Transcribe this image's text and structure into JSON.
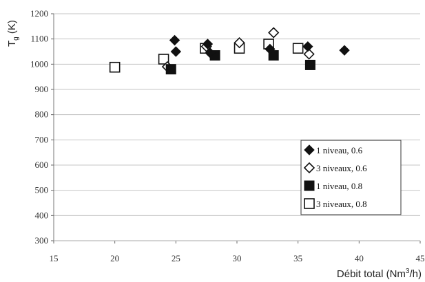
{
  "chart_data": {
    "type": "scatter",
    "title": "",
    "xlabel": "Débit total (Nm³/h)",
    "ylabel": "Tg (K)",
    "xlim": [
      15,
      45
    ],
    "ylim": [
      300,
      1200
    ],
    "x_ticks": [
      "15",
      "20",
      "25",
      "30",
      "35",
      "40",
      "45"
    ],
    "y_ticks": [
      "300",
      "400",
      "500",
      "600",
      "700",
      "800",
      "900",
      "1000",
      "1100",
      "1200"
    ],
    "grid": "horizontal",
    "legend_position": "bottom-right",
    "series": [
      {
        "name": "1 niveau, 0.6",
        "marker": "diamond-filled",
        "color": "#111111",
        "points": [
          {
            "x": 24.9,
            "y": 1095
          },
          {
            "x": 25.0,
            "y": 1050
          },
          {
            "x": 27.6,
            "y": 1080
          },
          {
            "x": 27.8,
            "y": 1045
          },
          {
            "x": 32.7,
            "y": 1060
          },
          {
            "x": 35.8,
            "y": 1070
          },
          {
            "x": 38.8,
            "y": 1055
          }
        ]
      },
      {
        "name": "3 niveaux, 0.6",
        "marker": "diamond-open",
        "color": "#111111",
        "points": [
          {
            "x": 24.3,
            "y": 990
          },
          {
            "x": 27.5,
            "y": 1070
          },
          {
            "x": 30.2,
            "y": 1085
          },
          {
            "x": 33.0,
            "y": 1125
          },
          {
            "x": 35.9,
            "y": 1040
          }
        ]
      },
      {
        "name": "1 niveau, 0.8",
        "marker": "square-filled",
        "color": "#111111",
        "points": [
          {
            "x": 24.6,
            "y": 980
          },
          {
            "x": 28.2,
            "y": 1035
          },
          {
            "x": 33.0,
            "y": 1035
          },
          {
            "x": 36.0,
            "y": 997
          }
        ]
      },
      {
        "name": "3 niveaux, 0.8",
        "marker": "square-open",
        "color": "#111111",
        "points": [
          {
            "x": 20.0,
            "y": 988
          },
          {
            "x": 24.0,
            "y": 1020
          },
          {
            "x": 27.4,
            "y": 1063
          },
          {
            "x": 30.2,
            "y": 1063
          },
          {
            "x": 32.6,
            "y": 1080
          },
          {
            "x": 35.0,
            "y": 1063
          }
        ]
      }
    ]
  }
}
